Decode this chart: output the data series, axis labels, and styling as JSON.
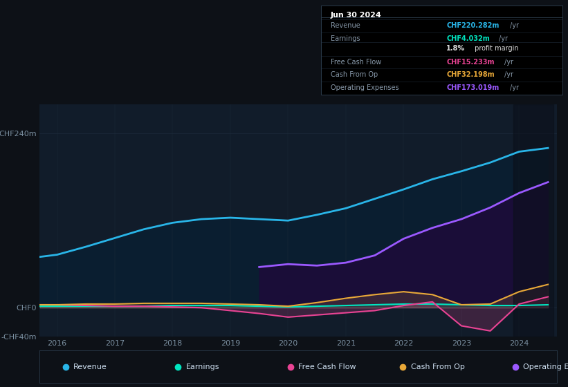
{
  "bg_color": "#0d1117",
  "plot_bg_color": "#111c2a",
  "grid_color": "#1e2d3d",
  "title_box": {
    "date": "Jun 30 2024",
    "rows": [
      {
        "label": "Revenue",
        "value": "CHF220.282m",
        "unit": "/yr",
        "color": "#29b5e8"
      },
      {
        "label": "Earnings",
        "value": "CHF4.032m",
        "unit": "/yr",
        "color": "#00e5c0"
      },
      {
        "label": "",
        "value": "1.8%",
        "unit": " profit margin",
        "color": "#dddddd"
      },
      {
        "label": "Free Cash Flow",
        "value": "CHF15.233m",
        "unit": "/yr",
        "color": "#e84393"
      },
      {
        "label": "Cash From Op",
        "value": "CHF32.198m",
        "unit": "/yr",
        "color": "#e8a838"
      },
      {
        "label": "Operating Expenses",
        "value": "CHF173.019m",
        "unit": "/yr",
        "color": "#9b59ff"
      }
    ]
  },
  "years": [
    2015.7,
    2016.0,
    2016.5,
    2017.0,
    2017.5,
    2018.0,
    2018.5,
    2019.0,
    2019.5,
    2020.0,
    2020.5,
    2021.0,
    2021.5,
    2022.0,
    2022.5,
    2023.0,
    2023.5,
    2024.0,
    2024.5
  ],
  "revenue": [
    70,
    73,
    84,
    96,
    108,
    117,
    122,
    124,
    122,
    120,
    128,
    137,
    150,
    163,
    177,
    188,
    200,
    215,
    220
  ],
  "op_exp": [
    0,
    0,
    0,
    0,
    0,
    0,
    0,
    0,
    56,
    60,
    58,
    62,
    72,
    95,
    110,
    122,
    138,
    158,
    173
  ],
  "earnings": [
    2,
    2,
    2,
    2,
    2,
    3,
    3,
    3,
    2,
    1,
    2,
    3,
    4,
    5,
    5,
    4,
    3,
    3,
    4
  ],
  "fcf": [
    4,
    4,
    3,
    2,
    2,
    1,
    0,
    -4,
    -8,
    -13,
    -10,
    -7,
    -4,
    3,
    8,
    -25,
    -32,
    5,
    15
  ],
  "cfo": [
    4,
    4,
    5,
    5,
    6,
    6,
    6,
    5,
    4,
    2,
    7,
    13,
    18,
    22,
    18,
    4,
    5,
    22,
    32
  ],
  "revenue_color": "#29b5e8",
  "earnings_color": "#00e5c0",
  "fcf_color": "#e84393",
  "cfo_color": "#e8a838",
  "op_exp_color": "#9b59ff",
  "ylim_min": -40,
  "ylim_max": 280,
  "ytick_vals": [
    -40,
    0,
    240
  ],
  "ytick_labels": [
    "-CHF40m",
    "CHF0",
    "CHF240m"
  ],
  "xticks": [
    2016,
    2017,
    2018,
    2019,
    2020,
    2021,
    2022,
    2023,
    2024
  ],
  "legend": [
    {
      "label": "Revenue",
      "color": "#29b5e8"
    },
    {
      "label": "Earnings",
      "color": "#00e5c0"
    },
    {
      "label": "Free Cash Flow",
      "color": "#e84393"
    },
    {
      "label": "Cash From Op",
      "color": "#e8a838"
    },
    {
      "label": "Operating Expenses",
      "color": "#9b59ff"
    }
  ]
}
